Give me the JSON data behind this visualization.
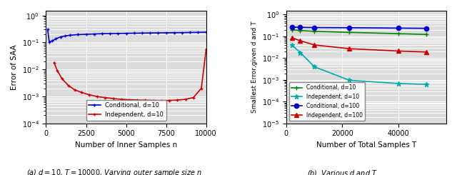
{
  "subplot_a": {
    "xlabel": "Number of Inner Samples n",
    "ylabel": "Error of SAA",
    "caption": "(a) $d = 10$, $T = 10000$, Varying outer sample size $n$",
    "blue_x": [
      100,
      200,
      400,
      600,
      900,
      1200,
      1500,
      2000,
      2500,
      3000,
      3500,
      4000,
      4500,
      5000,
      5500,
      6000,
      6500,
      7000,
      7500,
      8000,
      8500,
      9000,
      9500,
      10000
    ],
    "blue_y": [
      0.3,
      0.105,
      0.115,
      0.135,
      0.16,
      0.175,
      0.185,
      0.195,
      0.2,
      0.205,
      0.21,
      0.212,
      0.215,
      0.218,
      0.22,
      0.222,
      0.224,
      0.226,
      0.228,
      0.23,
      0.232,
      0.234,
      0.237,
      0.24
    ],
    "red_x": [
      500,
      700,
      1000,
      1400,
      1800,
      2200,
      2700,
      3200,
      3700,
      4200,
      4700,
      5200,
      5700,
      6200,
      6700,
      7200,
      7700,
      8200,
      8700,
      9200,
      9700,
      10000
    ],
    "red_y": [
      0.018,
      0.009,
      0.0045,
      0.0025,
      0.00175,
      0.0014,
      0.00115,
      0.00098,
      0.0009,
      0.00083,
      0.00078,
      0.00075,
      0.00073,
      0.00072,
      0.00071,
      0.0007,
      0.00071,
      0.00073,
      0.00078,
      0.0009,
      0.002,
      0.055
    ],
    "blue_color": "#0000cc",
    "red_color": "#cc0000",
    "xlim": [
      0,
      10000
    ],
    "ylim": [
      0.0001,
      1.5
    ],
    "legend_labels": [
      "Conditional, d=10",
      "Independent, d=10"
    ],
    "xticks": [
      0,
      2500,
      5000,
      7500,
      10000
    ]
  },
  "subplot_b": {
    "xlabel": "Number of Total Samples T",
    "ylabel": "Smallest Error,given d and T",
    "caption": "(b)  Various $d$ and $T$",
    "green_x": [
      2000,
      5000,
      10000,
      22500,
      40000,
      50000
    ],
    "green_y": [
      0.2,
      0.185,
      0.17,
      0.152,
      0.132,
      0.122
    ],
    "cyan_x": [
      2000,
      5000,
      10000,
      22500,
      40000,
      50000
    ],
    "cyan_y": [
      0.04,
      0.018,
      0.004,
      0.00095,
      0.00068,
      0.00062
    ],
    "blue_x": [
      2000,
      5000,
      10000,
      22500,
      40000,
      50000
    ],
    "blue_y": [
      0.265,
      0.26,
      0.252,
      0.248,
      0.238,
      0.232
    ],
    "red_x": [
      2000,
      5000,
      10000,
      22500,
      40000,
      50000
    ],
    "red_y": [
      0.085,
      0.063,
      0.04,
      0.027,
      0.021,
      0.019
    ],
    "green_color": "#008800",
    "cyan_color": "#00aaaa",
    "blue_color": "#0000cc",
    "red_color": "#cc0000",
    "xlim": [
      0,
      57000
    ],
    "ylim": [
      1e-05,
      1.5
    ],
    "legend_labels": [
      "Conditional, d=10",
      "Independent, d=10",
      "Conditional, d=100",
      "Independent, d=100"
    ],
    "xticks": [
      0,
      20000,
      40000
    ]
  },
  "figure_width": 6.4,
  "figure_height": 2.45,
  "dpi": 100
}
